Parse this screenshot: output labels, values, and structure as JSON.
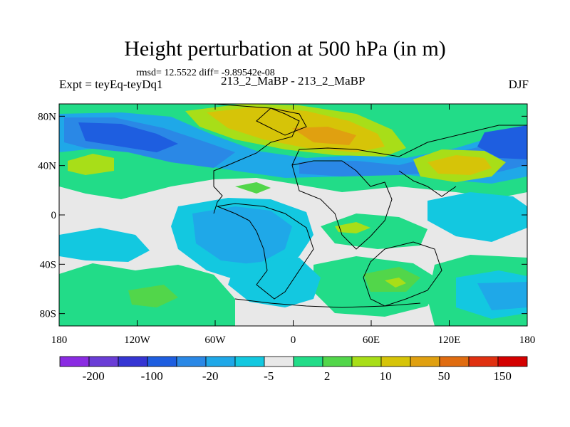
{
  "title": "Height perturbation at 500 hPa (in m)",
  "stats": "rmsd= 12.5522 diff= -9.89542e-08",
  "left_label": "Expt = teyEq-teyDq1",
  "center_label": "213_2_MaBP - 213_2_MaBP",
  "right_label": "DJF",
  "map": {
    "lat_ticks": [
      "80N",
      "40N",
      "0",
      "40S",
      "80S"
    ],
    "lat_values": [
      80,
      40,
      0,
      -40,
      -80
    ],
    "lon_ticks": [
      "180",
      "120W",
      "60W",
      "0",
      "60E",
      "120E",
      "180"
    ],
    "lon_values": [
      -180,
      -120,
      -60,
      0,
      60,
      120,
      180
    ],
    "lat_range": [
      -90,
      90
    ],
    "lon_range": [
      -180,
      180
    ]
  },
  "colorbar": {
    "labels": [
      "-200",
      "-100",
      "-20",
      "-5",
      "2",
      "10",
      "50",
      "150"
    ],
    "colors": [
      "#8a2be2",
      "#6a3dd6",
      "#3535d3",
      "#1e5ee0",
      "#2a88e6",
      "#1fa8e8",
      "#13c8e0",
      "#e8e8e8",
      "#22dc88",
      "#52d64a",
      "#a8de18",
      "#d6c408",
      "#e0a010",
      "#e06c10",
      "#e03010",
      "#d40000"
    ]
  },
  "colors": {
    "background_fill": "#e8e8e8",
    "coast": "#000000"
  }
}
